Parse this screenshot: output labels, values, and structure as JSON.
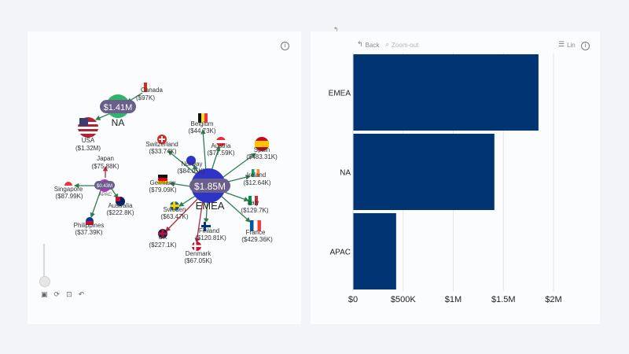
{
  "left_visual": {
    "clusters": {
      "na": {
        "label": "NA",
        "value": "$1.41M"
      },
      "emea": {
        "label": "EMEA",
        "value": "$1.85M"
      },
      "apac": {
        "label": "APAC",
        "value": "$0.43M"
      }
    },
    "countries": [
      {
        "name": "Canada",
        "value": "($97K)"
      },
      {
        "name": "USA",
        "value": "($1.32M)"
      },
      {
        "name": "Belgium",
        "value": "($44.73K)"
      },
      {
        "name": "Switzerland",
        "value": "($33.74K)"
      },
      {
        "name": "Austria",
        "value": "($77.59K)"
      },
      {
        "name": "Spain",
        "value": "($483.31K)"
      },
      {
        "name": "Norway",
        "value": "($84.05K)"
      },
      {
        "name": "Ireland",
        "value": "($12.64K)"
      },
      {
        "name": "Germany",
        "value": "($79.09K)"
      },
      {
        "name": "Italy",
        "value": "($129.7K)"
      },
      {
        "name": "Sweden",
        "value": "($63.47K)"
      },
      {
        "name": "France",
        "value": "($429.36K)"
      },
      {
        "name": "Finland",
        "value": "($120.81K)"
      },
      {
        "name": "UK",
        "value": "($227.1K)"
      },
      {
        "name": "Denmark",
        "value": "($67.05K)"
      },
      {
        "name": "Japan",
        "value": "($75.88K)"
      },
      {
        "name": "Singapore",
        "value": "($87.99K)"
      },
      {
        "name": "Australia",
        "value": "($222.8K)"
      },
      {
        "name": "Philippines",
        "value": "($37.39K)"
      }
    ],
    "info_icon": "info-icon"
  },
  "right_visual": {
    "toolbar": {
      "back_label": "Back",
      "zoom_out_label": "Zoom-out",
      "scale_label": "Lin"
    },
    "top_mark": "↰"
  },
  "chart_data": {
    "type": "bar",
    "orientation": "horizontal",
    "categories": [
      "EMEA",
      "NA",
      "APAC"
    ],
    "values": [
      1850000,
      1410000,
      430000
    ],
    "xlim": [
      0,
      2000000
    ],
    "xticks": [
      "$0",
      "$500K",
      "$1M",
      "$1.5M",
      "$2M"
    ],
    "grid": true,
    "bar_color": "#003473"
  }
}
